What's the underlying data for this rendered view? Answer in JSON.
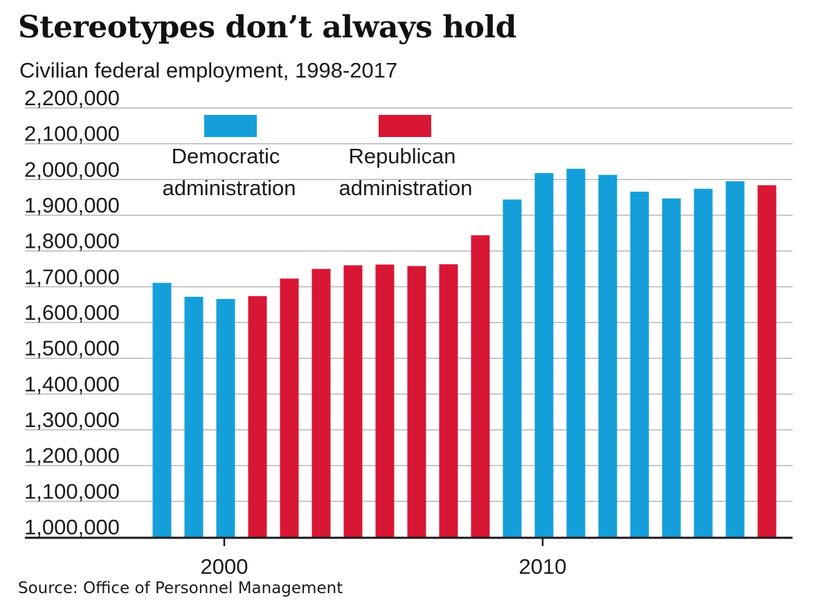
{
  "title": "Stereotypes don’t always hold",
  "subtitle": "Civilian federal employment, 1998-2017",
  "source": "Source: Office of Personnel Management",
  "colors": {
    "democratic": "#159fda",
    "republican": "#d81735",
    "grid": "#b5b5b5",
    "axis": "#1a1a1a"
  },
  "legend": [
    {
      "key": "democratic",
      "line1": "Democratic",
      "line2": "administration"
    },
    {
      "key": "republican",
      "line1": "Republican",
      "line2": "administration"
    }
  ],
  "chart_data": {
    "type": "bar",
    "x": [
      1998,
      1999,
      2000,
      2001,
      2002,
      2003,
      2004,
      2005,
      2006,
      2007,
      2008,
      2009,
      2010,
      2011,
      2012,
      2013,
      2014,
      2015,
      2016,
      2017
    ],
    "values": [
      1711000,
      1672000,
      1666000,
      1674000,
      1723000,
      1750000,
      1760000,
      1762000,
      1758000,
      1763000,
      1844000,
      1944000,
      2018000,
      2030000,
      2013000,
      1966000,
      1947000,
      1974000,
      1995000,
      1984000
    ],
    "party": [
      "democratic",
      "democratic",
      "democratic",
      "republican",
      "republican",
      "republican",
      "republican",
      "republican",
      "republican",
      "republican",
      "republican",
      "democratic",
      "democratic",
      "democratic",
      "democratic",
      "democratic",
      "democratic",
      "democratic",
      "democratic",
      "republican"
    ],
    "ylim": [
      1000000,
      2200000
    ],
    "ytick_values": [
      1000000,
      1100000,
      1200000,
      1300000,
      1400000,
      1500000,
      1600000,
      1700000,
      1800000,
      1900000,
      2000000,
      2100000,
      2200000
    ],
    "ytick_labels": [
      "1,000,000",
      "1,100,000",
      "1,200,000",
      "1,300,000",
      "1,400,000",
      "1,500,000",
      "1,600,000",
      "1,700,000",
      "1,800,000",
      "1,900,000",
      "2,000,000",
      "2,100,000",
      "2,200,000"
    ],
    "xtick_values": [
      2000,
      2010
    ],
    "xtick_labels": [
      "2000",
      "2010"
    ],
    "grid": true,
    "legend_position": "top-left"
  }
}
